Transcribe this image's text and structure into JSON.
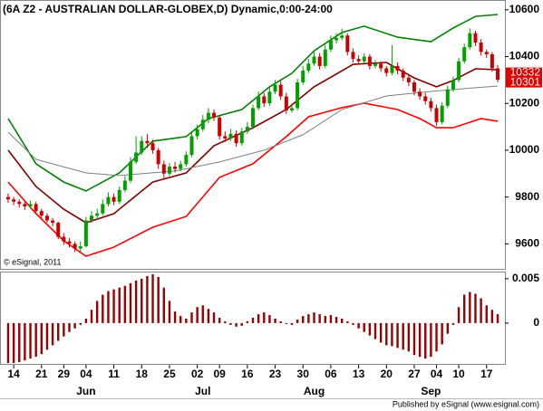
{
  "chart_data": [
    {
      "type": "candlestick",
      "title": "(6A Z2 - AUSTRALIAN DOLLAR-GLOBEX,D) Dynamic,0:00-24:00",
      "xlim": [
        -1.3,
        89.3
      ],
      "ylim": [
        9493,
        10638
      ],
      "yticks": [
        9600,
        9800,
        10000,
        10200,
        10400,
        10600
      ],
      "up_color": "#00a000",
      "down_color": "#cc0000",
      "ohlc": [
        [
          9800,
          9815,
          9775,
          9790
        ],
        [
          9790,
          9800,
          9765,
          9780
        ],
        [
          9780,
          9790,
          9755,
          9770
        ],
        [
          9770,
          9780,
          9745,
          9760
        ],
        [
          9760,
          9785,
          9750,
          9770
        ],
        [
          9770,
          9780,
          9730,
          9740
        ],
        [
          9740,
          9750,
          9705,
          9720
        ],
        [
          9720,
          9730,
          9690,
          9700
        ],
        [
          9700,
          9710,
          9675,
          9690
        ],
        [
          9690,
          9695,
          9620,
          9630
        ],
        [
          9630,
          9645,
          9595,
          9610
        ],
        [
          9610,
          9625,
          9585,
          9600
        ],
        [
          9600,
          9610,
          9565,
          9580
        ],
        [
          9580,
          9610,
          9565,
          9590
        ],
        [
          9590,
          9715,
          9585,
          9700
        ],
        [
          9700,
          9740,
          9690,
          9720
        ],
        [
          9720,
          9750,
          9705,
          9730
        ],
        [
          9730,
          9790,
          9720,
          9770
        ],
        [
          9770,
          9820,
          9760,
          9800
        ],
        [
          9800,
          9815,
          9765,
          9780
        ],
        [
          9780,
          9845,
          9770,
          9830
        ],
        [
          9830,
          9890,
          9820,
          9870
        ],
        [
          9870,
          9970,
          9860,
          9950
        ],
        [
          9950,
          10060,
          9940,
          9990
        ],
        [
          9990,
          10060,
          9980,
          10040
        ],
        [
          10040,
          10070,
          10010,
          10030
        ],
        [
          10030,
          10045,
          9985,
          10000
        ],
        [
          10000,
          10010,
          9920,
          9940
        ],
        [
          9940,
          9955,
          9880,
          9900
        ],
        [
          9900,
          9945,
          9890,
          9930
        ],
        [
          9930,
          9950,
          9905,
          9920
        ],
        [
          9920,
          9955,
          9910,
          9940
        ],
        [
          9940,
          9995,
          9930,
          9980
        ],
        [
          9980,
          10075,
          9970,
          10060
        ],
        [
          10060,
          10110,
          10045,
          10090
        ],
        [
          10090,
          10150,
          10080,
          10130
        ],
        [
          10130,
          10180,
          10115,
          10160
        ],
        [
          10160,
          10175,
          10125,
          10140
        ],
        [
          10140,
          10150,
          10045,
          10060
        ],
        [
          10060,
          10080,
          10035,
          10050
        ],
        [
          10050,
          10090,
          10040,
          10070
        ],
        [
          10070,
          10085,
          10015,
          10030
        ],
        [
          10030,
          10095,
          10020,
          10080
        ],
        [
          10080,
          10120,
          10070,
          10100
        ],
        [
          10100,
          10195,
          10090,
          10180
        ],
        [
          10180,
          10250,
          10170,
          10230
        ],
        [
          10230,
          10245,
          10185,
          10200
        ],
        [
          10200,
          10270,
          10190,
          10250
        ],
        [
          10250,
          10300,
          10240,
          10280
        ],
        [
          10280,
          10295,
          10215,
          10230
        ],
        [
          10230,
          10245,
          10155,
          10170
        ],
        [
          10170,
          10200,
          10160,
          10180
        ],
        [
          10180,
          10305,
          10170,
          10290
        ],
        [
          10290,
          10360,
          10280,
          10340
        ],
        [
          10340,
          10390,
          10330,
          10370
        ],
        [
          10370,
          10420,
          10360,
          10400
        ],
        [
          10400,
          10415,
          10345,
          10360
        ],
        [
          10360,
          10450,
          10350,
          10430
        ],
        [
          10430,
          10490,
          10420,
          10470
        ],
        [
          10470,
          10500,
          10455,
          10480
        ],
        [
          10480,
          10520,
          10470,
          10490
        ],
        [
          10490,
          10500,
          10405,
          10420
        ],
        [
          10420,
          10435,
          10375,
          10390
        ],
        [
          10390,
          10405,
          10365,
          10380
        ],
        [
          10380,
          10415,
          10370,
          10400
        ],
        [
          10400,
          10410,
          10345,
          10360
        ],
        [
          10360,
          10385,
          10350,
          10370
        ],
        [
          10370,
          10380,
          10335,
          10350
        ],
        [
          10350,
          10360,
          10315,
          10330
        ],
        [
          10330,
          10450,
          10320,
          10360
        ],
        [
          10360,
          10375,
          10325,
          10340
        ],
        [
          10340,
          10350,
          10295,
          10310
        ],
        [
          10310,
          10320,
          10275,
          10290
        ],
        [
          10290,
          10300,
          10235,
          10250
        ],
        [
          10250,
          10265,
          10215,
          10230
        ],
        [
          10230,
          10245,
          10195,
          10210
        ],
        [
          10210,
          10225,
          10165,
          10180
        ],
        [
          10180,
          10195,
          10105,
          10120
        ],
        [
          10120,
          10205,
          10110,
          10190
        ],
        [
          10190,
          10275,
          10180,
          10260
        ],
        [
          10260,
          10315,
          10250,
          10300
        ],
        [
          10300,
          10395,
          10290,
          10380
        ],
        [
          10380,
          10455,
          10370,
          10440
        ],
        [
          10440,
          10520,
          10430,
          10500
        ],
        [
          10500,
          10510,
          10445,
          10460
        ],
        [
          10460,
          10475,
          10405,
          10420
        ],
        [
          10420,
          10430,
          10395,
          10410
        ],
        [
          10410,
          10420,
          10335,
          10350
        ],
        [
          10350,
          10365,
          10290,
          10301
        ]
      ],
      "lines": [
        {
          "color": "#008000",
          "x": [
            0,
            5,
            10,
            14,
            20,
            26,
            32,
            36,
            42,
            47,
            51,
            55,
            60,
            64,
            70,
            76,
            80,
            84,
            88
          ],
          "values": [
            10135,
            9942,
            9864,
            9826,
            9903,
            10039,
            10058,
            10135,
            10174,
            10271,
            10329,
            10425,
            10503,
            10530,
            10483,
            10464,
            10522,
            10572,
            10580
          ]
        },
        {
          "color": "#800000",
          "x": [
            0,
            5,
            10,
            14,
            19,
            26,
            32,
            37,
            44,
            50,
            55,
            62,
            68,
            73,
            77,
            80,
            84,
            88
          ],
          "values": [
            10000,
            9845,
            9748,
            9690,
            9729,
            9864,
            9903,
            10019,
            10096,
            10174,
            10271,
            10367,
            10375,
            10309,
            10271,
            10298,
            10348,
            10344
          ]
        },
        {
          "color": "#ff0000",
          "x": [
            0,
            5,
            10,
            14,
            19,
            26,
            32,
            38,
            44,
            50,
            54,
            60,
            64,
            70,
            74,
            77,
            80,
            85,
            88
          ],
          "values": [
            9864,
            9729,
            9613,
            9547,
            9586,
            9671,
            9717,
            9884,
            9942,
            10058,
            10143,
            10182,
            10201,
            10174,
            10135,
            10096,
            10096,
            10135,
            10124
          ]
        },
        {
          "color": "#808080",
          "x": [
            0,
            5,
            14,
            20,
            30,
            38,
            46,
            53,
            60,
            68,
            76,
            84,
            88
          ],
          "values": [
            10077,
            9961,
            9903,
            9892,
            9911,
            9950,
            10000,
            10066,
            10174,
            10232,
            10251,
            10267,
            10274
          ]
        }
      ],
      "price_markers": [
        10332,
        10301
      ],
      "marker_color": "#e00000",
      "copyright": "© eSignal, 2011"
    },
    {
      "type": "bar",
      "xlim": [
        -1.3,
        89.3
      ],
      "ylim": [
        -0.0046,
        0.0057
      ],
      "yticks": [
        0,
        0.005
      ],
      "color": "#990000",
      "values": [
        -0.0045,
        -0.0045,
        -0.0044,
        -0.0042,
        -0.004,
        -0.0038,
        -0.0035,
        -0.003,
        -0.0025,
        -0.002,
        -0.0015,
        -0.001,
        -0.0006,
        -0.0002,
        0.0005,
        0.0015,
        0.0025,
        0.0032,
        0.0036,
        0.0038,
        0.004,
        0.0042,
        0.0045,
        0.0048,
        0.005,
        0.0053,
        0.0055,
        0.0052,
        0.004,
        0.0025,
        0.0013,
        0.0008,
        0.0005,
        0.0012,
        0.0018,
        0.002,
        0.0016,
        0.0012,
        0.0006,
        0.0002,
        -0.0002,
        -0.0004,
        -0.0003,
        0.0002,
        0.0006,
        0.001,
        0.0012,
        0.0009,
        0.0005,
        0.0002,
        -0.0001,
        -0.0002,
        0.0004,
        0.0008,
        0.001,
        0.0012,
        0.001,
        0.0008,
        0.0009,
        0.0007,
        0.0005,
        0.0002,
        -0.0002,
        -0.0006,
        -0.001,
        -0.0014,
        -0.0018,
        -0.0022,
        -0.0025,
        -0.0026,
        -0.0028,
        -0.003,
        -0.0032,
        -0.0036,
        -0.0038,
        -0.004,
        -0.0038,
        -0.0032,
        -0.0024,
        -0.0012,
        -0.0002,
        0.0018,
        0.0032,
        0.0035,
        0.0033,
        0.0028,
        0.002,
        0.0015,
        0.001
      ],
      "xticks": [
        {
          "value": 1,
          "label": "14"
        },
        {
          "value": 6,
          "label": "21"
        },
        {
          "value": 10,
          "label": "29"
        },
        {
          "value": 14,
          "label": "04"
        },
        {
          "value": 19,
          "label": "11"
        },
        {
          "value": 24,
          "label": "18"
        },
        {
          "value": 29,
          "label": "25"
        },
        {
          "value": 34,
          "label": "02"
        },
        {
          "value": 38,
          "label": "09"
        },
        {
          "value": 43,
          "label": "16"
        },
        {
          "value": 48,
          "label": "23"
        },
        {
          "value": 53,
          "label": "30"
        },
        {
          "value": 58,
          "label": "06"
        },
        {
          "value": 63,
          "label": "13"
        },
        {
          "value": 68,
          "label": "20"
        },
        {
          "value": 73,
          "label": "27"
        },
        {
          "value": 77,
          "label": "04"
        },
        {
          "value": 81,
          "label": "10"
        },
        {
          "value": 86,
          "label": "17"
        }
      ],
      "month_labels": [
        {
          "value": 14,
          "label": "Jun"
        },
        {
          "value": 35,
          "label": "Jul"
        },
        {
          "value": 55,
          "label": "Aug"
        },
        {
          "value": 76,
          "label": "Sep"
        }
      ]
    }
  ],
  "footer": "Published by eSignal (www.esignal.com)"
}
